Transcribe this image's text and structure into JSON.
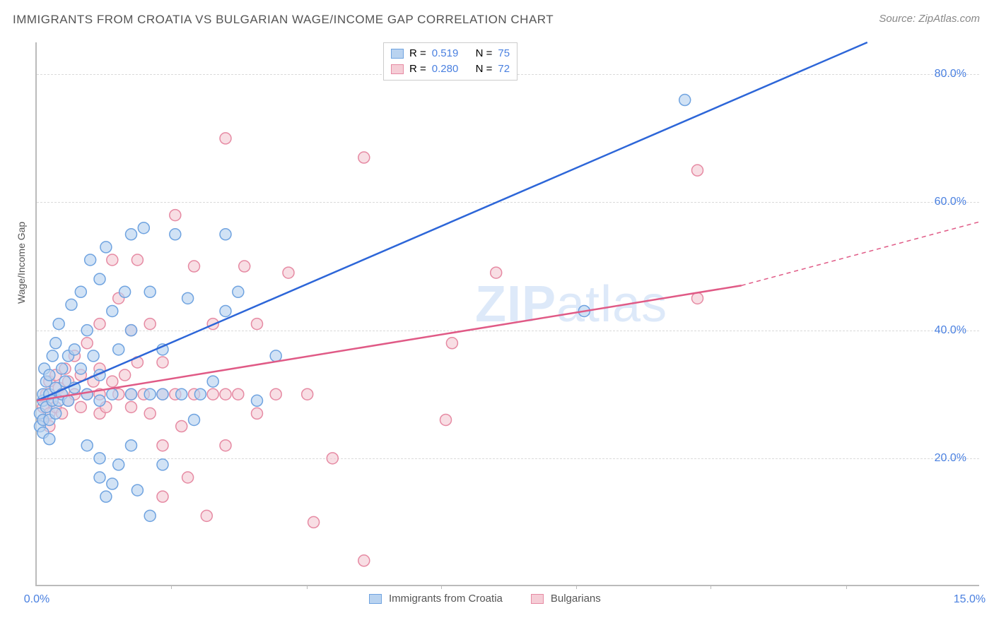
{
  "title": "IMMIGRANTS FROM CROATIA VS BULGARIAN WAGE/INCOME GAP CORRELATION CHART",
  "source_label": "Source:",
  "source_name": "ZipAtlas.com",
  "ylabel": "Wage/Income Gap",
  "watermark_bold": "ZIP",
  "watermark_rest": "atlas",
  "chart": {
    "type": "scatter",
    "xlim": [
      0,
      15
    ],
    "ylim": [
      0,
      85
    ],
    "y_gridlines": [
      20,
      40,
      60,
      80
    ],
    "y_tick_labels": [
      "20.0%",
      "40.0%",
      "60.0%",
      "80.0%"
    ],
    "x_minor_ticks": [
      2.14,
      4.29,
      6.43,
      8.57,
      10.71,
      12.86
    ],
    "x_tick_labels": {
      "left": "0.0%",
      "right": "15.0%"
    },
    "background_color": "#ffffff",
    "grid_color": "#dadada",
    "axis_color": "#bbbbbb",
    "tick_label_color": "#4a80e0",
    "point_radius": 8,
    "point_stroke_width": 1.5,
    "trend_line_width": 2.5,
    "series": [
      {
        "name": "Immigrants from Croatia",
        "fill_color": "#b9d3f0",
        "stroke_color": "#6fa3e0",
        "line_color": "#2d66d8",
        "R": "0.519",
        "N": "75",
        "trend": {
          "x1": 0,
          "y1": 29,
          "x2": 13.2,
          "y2": 85,
          "extrapolate": false
        },
        "points": [
          [
            0.05,
            25
          ],
          [
            0.05,
            27
          ],
          [
            0.1,
            24
          ],
          [
            0.1,
            26
          ],
          [
            0.1,
            29
          ],
          [
            0.1,
            30
          ],
          [
            0.12,
            34
          ],
          [
            0.15,
            28
          ],
          [
            0.15,
            32
          ],
          [
            0.2,
            23
          ],
          [
            0.2,
            26
          ],
          [
            0.2,
            30
          ],
          [
            0.2,
            33
          ],
          [
            0.25,
            29
          ],
          [
            0.25,
            36
          ],
          [
            0.3,
            27
          ],
          [
            0.3,
            31
          ],
          [
            0.3,
            38
          ],
          [
            0.35,
            29
          ],
          [
            0.35,
            41
          ],
          [
            0.4,
            30
          ],
          [
            0.4,
            34
          ],
          [
            0.45,
            32
          ],
          [
            0.5,
            29
          ],
          [
            0.5,
            36
          ],
          [
            0.55,
            44
          ],
          [
            0.6,
            31
          ],
          [
            0.6,
            37
          ],
          [
            0.7,
            34
          ],
          [
            0.7,
            46
          ],
          [
            0.8,
            22
          ],
          [
            0.8,
            30
          ],
          [
            0.8,
            40
          ],
          [
            0.85,
            51
          ],
          [
            0.9,
            36
          ],
          [
            1.0,
            17
          ],
          [
            1.0,
            20
          ],
          [
            1.0,
            29
          ],
          [
            1.0,
            33
          ],
          [
            1.0,
            48
          ],
          [
            1.1,
            14
          ],
          [
            1.1,
            53
          ],
          [
            1.2,
            16
          ],
          [
            1.2,
            30
          ],
          [
            1.2,
            43
          ],
          [
            1.3,
            19
          ],
          [
            1.3,
            37
          ],
          [
            1.4,
            46
          ],
          [
            1.5,
            22
          ],
          [
            1.5,
            30
          ],
          [
            1.5,
            40
          ],
          [
            1.5,
            55
          ],
          [
            1.6,
            15
          ],
          [
            1.7,
            56
          ],
          [
            1.8,
            11
          ],
          [
            1.8,
            30
          ],
          [
            1.8,
            46
          ],
          [
            2.0,
            19
          ],
          [
            2.0,
            30
          ],
          [
            2.0,
            37
          ],
          [
            2.2,
            55
          ],
          [
            2.3,
            30
          ],
          [
            2.4,
            45
          ],
          [
            2.5,
            26
          ],
          [
            2.6,
            30
          ],
          [
            2.8,
            32
          ],
          [
            3.0,
            43
          ],
          [
            3.0,
            55
          ],
          [
            3.2,
            46
          ],
          [
            3.5,
            29
          ],
          [
            3.8,
            36
          ],
          [
            8.7,
            43
          ],
          [
            10.3,
            76
          ]
        ]
      },
      {
        "name": "Bulgarians",
        "fill_color": "#f5cdd6",
        "stroke_color": "#e68aa3",
        "line_color": "#e05a86",
        "R": "0.280",
        "N": "72",
        "trend": {
          "x1": 0,
          "y1": 29,
          "x2": 11.2,
          "y2": 47,
          "extrapolate_to_x": 15,
          "extrapolate_y": 57
        },
        "points": [
          [
            0.1,
            26
          ],
          [
            0.1,
            28
          ],
          [
            0.15,
            30
          ],
          [
            0.2,
            25
          ],
          [
            0.2,
            27
          ],
          [
            0.2,
            32
          ],
          [
            0.25,
            29
          ],
          [
            0.3,
            28
          ],
          [
            0.3,
            33
          ],
          [
            0.35,
            31
          ],
          [
            0.4,
            27
          ],
          [
            0.4,
            30
          ],
          [
            0.45,
            34
          ],
          [
            0.5,
            29
          ],
          [
            0.5,
            32
          ],
          [
            0.6,
            30
          ],
          [
            0.6,
            36
          ],
          [
            0.7,
            28
          ],
          [
            0.7,
            33
          ],
          [
            0.8,
            30
          ],
          [
            0.8,
            38
          ],
          [
            0.9,
            32
          ],
          [
            1.0,
            27
          ],
          [
            1.0,
            30
          ],
          [
            1.0,
            34
          ],
          [
            1.0,
            41
          ],
          [
            1.1,
            28
          ],
          [
            1.2,
            32
          ],
          [
            1.2,
            51
          ],
          [
            1.3,
            30
          ],
          [
            1.3,
            45
          ],
          [
            1.4,
            33
          ],
          [
            1.5,
            28
          ],
          [
            1.5,
            30
          ],
          [
            1.5,
            40
          ],
          [
            1.6,
            35
          ],
          [
            1.6,
            51
          ],
          [
            1.7,
            30
          ],
          [
            1.8,
            27
          ],
          [
            1.8,
            41
          ],
          [
            2.0,
            14
          ],
          [
            2.0,
            22
          ],
          [
            2.0,
            30
          ],
          [
            2.0,
            35
          ],
          [
            2.2,
            30
          ],
          [
            2.2,
            58
          ],
          [
            2.3,
            25
          ],
          [
            2.4,
            17
          ],
          [
            2.5,
            30
          ],
          [
            2.5,
            50
          ],
          [
            2.7,
            11
          ],
          [
            2.8,
            30
          ],
          [
            2.8,
            41
          ],
          [
            3.0,
            22
          ],
          [
            3.0,
            30
          ],
          [
            3.0,
            70
          ],
          [
            3.2,
            30
          ],
          [
            3.3,
            50
          ],
          [
            3.5,
            27
          ],
          [
            3.5,
            41
          ],
          [
            3.8,
            30
          ],
          [
            4.0,
            49
          ],
          [
            4.3,
            30
          ],
          [
            4.4,
            10
          ],
          [
            4.7,
            20
          ],
          [
            5.2,
            4
          ],
          [
            5.2,
            67
          ],
          [
            6.5,
            26
          ],
          [
            6.6,
            38
          ],
          [
            7.3,
            49
          ],
          [
            10.5,
            45
          ],
          [
            10.5,
            65
          ]
        ]
      }
    ]
  },
  "stats_legend": {
    "r_label": "R =",
    "n_label": "N ="
  }
}
